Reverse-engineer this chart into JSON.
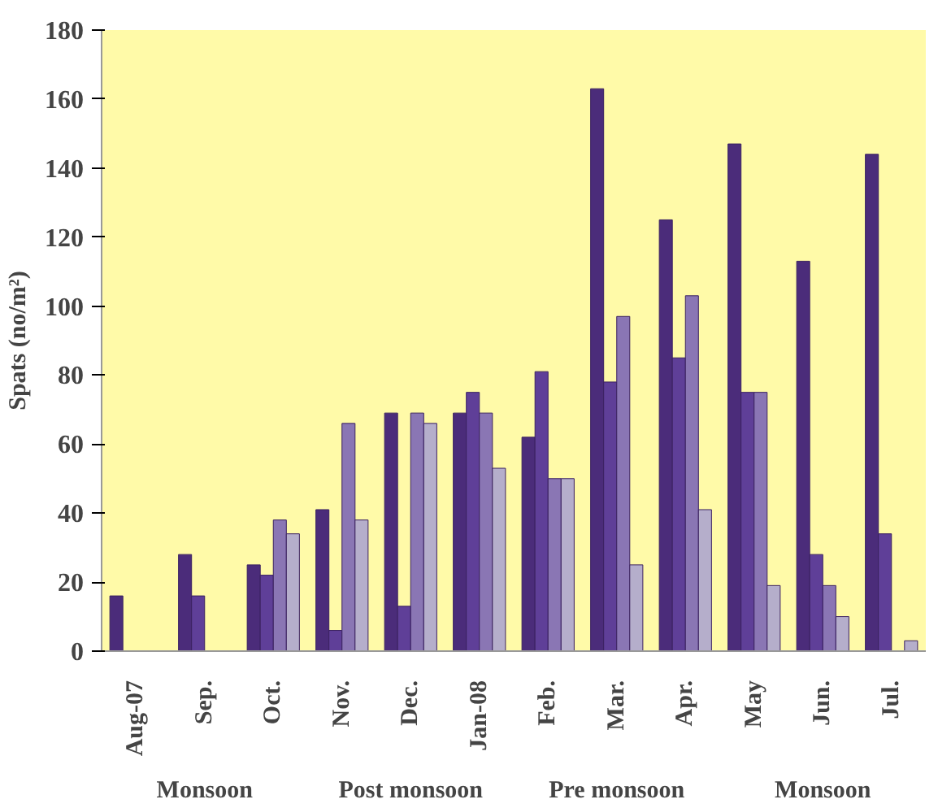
{
  "chart_data": {
    "type": "bar",
    "ylabel": "Spats (no/m²)",
    "categories": [
      "Aug-07",
      "Sep.",
      "Oct.",
      "Nov.",
      "Dec.",
      "Jan-08",
      "Feb.",
      "Mar.",
      "Apr.",
      "May",
      "Jun.",
      "Jul."
    ],
    "series": [
      {
        "color": "#4b2c7a",
        "values": [
          16,
          28,
          25,
          41,
          69,
          69,
          62,
          163,
          125,
          147,
          113,
          144
        ]
      },
      {
        "color": "#5f3f98",
        "values": [
          null,
          16,
          22,
          6,
          13,
          75,
          81,
          78,
          85,
          75,
          28,
          34
        ]
      },
      {
        "color": "#8a76b4",
        "values": [
          null,
          null,
          38,
          66,
          69,
          69,
          50,
          97,
          103,
          75,
          19,
          null
        ]
      },
      {
        "color": "#b5aecb",
        "values": [
          null,
          null,
          34,
          38,
          66,
          53,
          50,
          25,
          41,
          19,
          10,
          3
        ]
      }
    ],
    "ylim": [
      0,
      180
    ],
    "yticks": [
      0,
      20,
      40,
      60,
      80,
      100,
      120,
      140,
      160,
      180
    ],
    "grid": false,
    "annotations": [
      "Monsoon",
      "Post monsoon",
      "Pre monsoon",
      "Monsoon"
    ]
  }
}
